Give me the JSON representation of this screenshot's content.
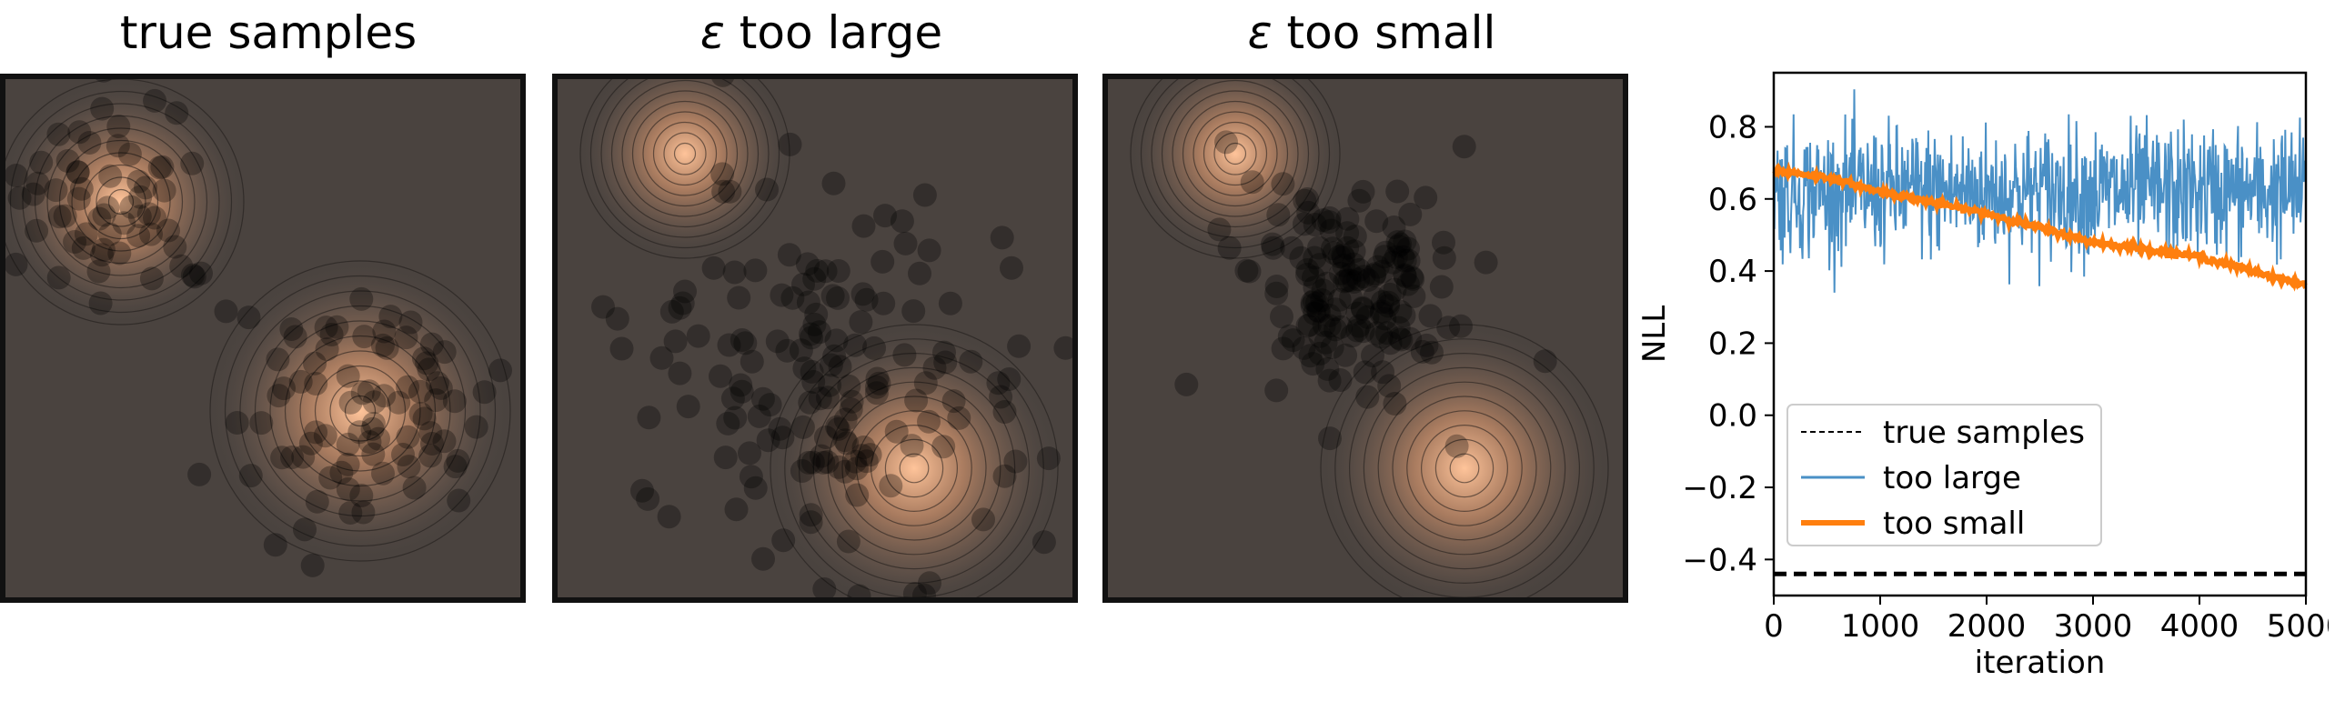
{
  "panels": [
    {
      "title": "true samples"
    },
    {
      "title": "too large",
      "epsilon": "ε"
    },
    {
      "title": "too small",
      "epsilon": "ε"
    }
  ],
  "colors": {
    "panel_bg": "#4a433f",
    "density_peak": "#ffc49a",
    "sample_dot": "#000000",
    "too_large_line": "#4a90c6",
    "too_small_line": "#ff7f0e",
    "true_samples_line": "#000000"
  },
  "chart_data": {
    "type": "line",
    "xlabel": "iteration",
    "ylabel": "NLL",
    "xlim": [
      0,
      5000
    ],
    "ylim": [
      -0.5,
      0.95
    ],
    "xticks": [
      0,
      1000,
      2000,
      3000,
      4000,
      5000
    ],
    "yticks": [
      -0.4,
      -0.2,
      0.0,
      0.2,
      0.4,
      0.6,
      0.8
    ],
    "ytick_labels": [
      "−0.4",
      "−0.2",
      "0.0",
      "0.2",
      "0.4",
      "0.6",
      "0.8"
    ],
    "legend_position": "lower-left",
    "series": [
      {
        "name": "true samples",
        "style": "dashed",
        "constant": -0.44
      },
      {
        "name": "too large",
        "style": "noisy",
        "mean": 0.62,
        "noise_range": [
          0.34,
          0.91
        ]
      },
      {
        "name": "too small",
        "style": "solid",
        "x": [
          0,
          500,
          1000,
          1500,
          2000,
          2500,
          3000,
          3500,
          4000,
          4500,
          5000
        ],
        "y": [
          0.68,
          0.66,
          0.62,
          0.59,
          0.56,
          0.52,
          0.48,
          0.46,
          0.44,
          0.4,
          0.36
        ]
      }
    ]
  }
}
